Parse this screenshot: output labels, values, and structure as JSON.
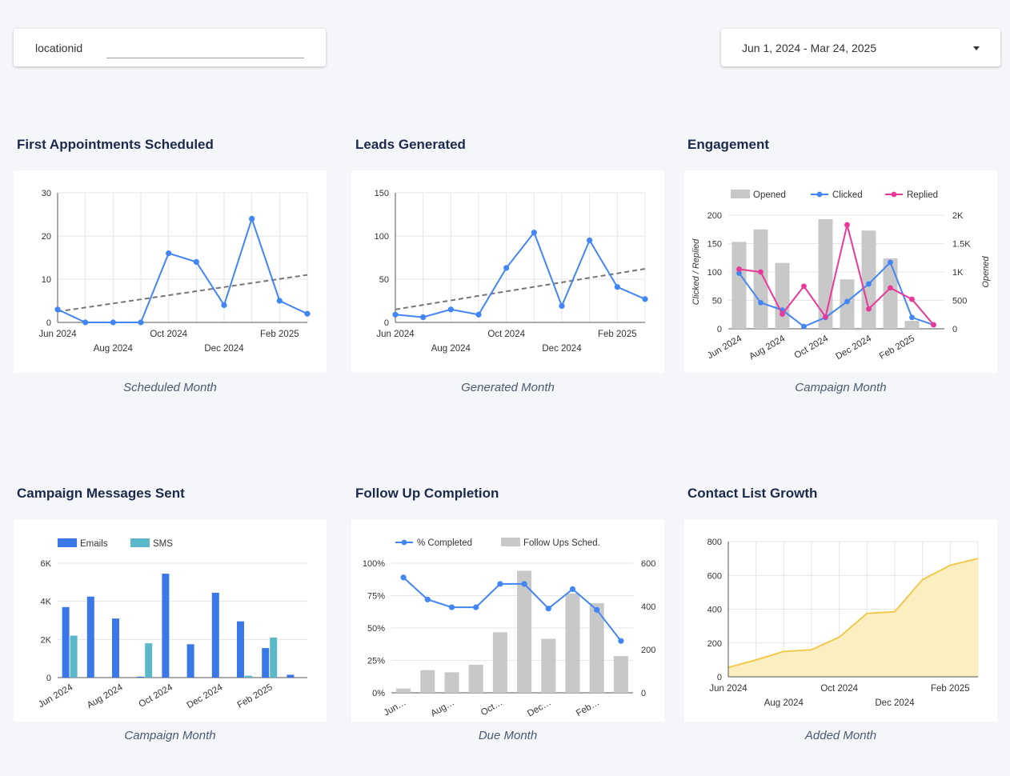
{
  "filters": {
    "location_label": "locationid",
    "date_range": "Jun 1, 2024 - Mar 24, 2025"
  },
  "chart_data": [
    {
      "id": "appointments",
      "type": "line",
      "title": "First Appointments Scheduled",
      "xlabel": "Scheduled Month",
      "ylabel": "",
      "ylim": [
        0,
        30
      ],
      "yticks": [
        "0",
        "10",
        "20",
        "30"
      ],
      "yticks_values": [
        0,
        10,
        20,
        30
      ],
      "x": [
        "Jun 2024",
        "Jul 2024",
        "Aug 2024",
        "Sep 2024",
        "Oct 2024",
        "Nov 2024",
        "Dec 2024",
        "Jan 2025",
        "Feb 2025",
        "Mar 2025"
      ],
      "xtick_labels": [
        {
          "label": "Jun 2024",
          "index": 0,
          "row": 0
        },
        {
          "label": "Aug 2024",
          "index": 2,
          "row": 1
        },
        {
          "label": "Oct 2024",
          "index": 4,
          "row": 0
        },
        {
          "label": "Dec 2024",
          "index": 6,
          "row": 1
        },
        {
          "label": "Feb 2025",
          "index": 8,
          "row": 0
        }
      ],
      "series": [
        {
          "name": "First Appointments",
          "values": [
            3,
            0,
            0,
            0,
            16,
            14,
            4,
            24,
            5,
            2
          ],
          "color": "#4285f4"
        }
      ],
      "trendline": {
        "start": 2.5,
        "end": 11,
        "color": "#757575"
      }
    },
    {
      "id": "leads",
      "type": "line",
      "title": "Leads Generated",
      "xlabel": "Generated Month",
      "ylabel": "",
      "ylim": [
        0,
        150
      ],
      "yticks": [
        "0",
        "50",
        "100",
        "150"
      ],
      "yticks_values": [
        0,
        50,
        100,
        150
      ],
      "x": [
        "Jun 2024",
        "Jul 2024",
        "Aug 2024",
        "Sep 2024",
        "Oct 2024",
        "Nov 2024",
        "Dec 2024",
        "Jan 2025",
        "Feb 2025",
        "Mar 2025"
      ],
      "xtick_labels": [
        {
          "label": "Jun 2024",
          "index": 0,
          "row": 0
        },
        {
          "label": "Aug 2024",
          "index": 2,
          "row": 1
        },
        {
          "label": "Oct 2024",
          "index": 4,
          "row": 0
        },
        {
          "label": "Dec 2024",
          "index": 6,
          "row": 1
        },
        {
          "label": "Feb 2025",
          "index": 8,
          "row": 0
        }
      ],
      "series": [
        {
          "name": "Leads",
          "values": [
            9,
            6,
            15,
            9,
            63,
            104,
            19,
            95,
            41,
            27
          ],
          "color": "#4285f4"
        }
      ],
      "trendline": {
        "start": 15,
        "end": 62,
        "color": "#757575"
      }
    },
    {
      "id": "engagement",
      "type": "combo",
      "title": "Engagement",
      "xlabel": "Campaign Month",
      "ylabel": "Clicked / Replied",
      "y2label": "Opened",
      "ylim": [
        0,
        200
      ],
      "yticks": [
        "0",
        "50",
        "100",
        "150",
        "200"
      ],
      "yticks_values": [
        0,
        50,
        100,
        150,
        200
      ],
      "y2lim": [
        0,
        2000
      ],
      "y2ticks": [
        "0",
        "500",
        "1K",
        "1.5K",
        "2K"
      ],
      "y2ticks_values": [
        0,
        500,
        1000,
        1500,
        2000
      ],
      "x": [
        "Jun 2024",
        "Jul 2024",
        "Aug 2024",
        "Sep 2024",
        "Oct 2024",
        "Nov 2024",
        "Dec 2024",
        "Jan 2025",
        "Feb 2025",
        "Mar 2025"
      ],
      "xtick_labels": [
        {
          "label": "Jun 2024",
          "index": 0
        },
        {
          "label": "Aug 2024",
          "index": 2
        },
        {
          "label": "Oct 2024",
          "index": 4
        },
        {
          "label": "Dec 2024",
          "index": 6
        },
        {
          "label": "Feb 2025",
          "index": 8
        }
      ],
      "bars": [
        {
          "name": "Opened",
          "values": [
            1530,
            1750,
            1160,
            0,
            1930,
            870,
            1730,
            1240,
            140,
            0
          ],
          "color": "#c8c8c8",
          "axis": "right"
        }
      ],
      "series": [
        {
          "name": "Clicked",
          "values": [
            98,
            46,
            33,
            4,
            20,
            48,
            79,
            117,
            20,
            7
          ],
          "color": "#4285f4"
        },
        {
          "name": "Replied",
          "values": [
            105,
            100,
            26,
            75,
            21,
            183,
            35,
            72,
            52,
            7
          ],
          "color": "#e8399a"
        }
      ],
      "legend": [
        "Opened",
        "Clicked",
        "Replied"
      ]
    },
    {
      "id": "messages",
      "type": "bar",
      "title": "Campaign Messages Sent",
      "xlabel": "Campaign Month",
      "ylabel": "",
      "ylim": [
        0,
        6000
      ],
      "yticks": [
        "0",
        "2K",
        "4K",
        "6K"
      ],
      "yticks_values": [
        0,
        2000,
        4000,
        6000
      ],
      "x": [
        "Jun 2024",
        "Jul 2024",
        "Aug 2024",
        "Sep 2024",
        "Oct 2024",
        "Nov 2024",
        "Dec 2024",
        "Jan 2025",
        "Feb 2025",
        "Mar 2025"
      ],
      "xtick_labels": [
        {
          "label": "Jun 2024",
          "index": 0
        },
        {
          "label": "Aug 2024",
          "index": 2
        },
        {
          "label": "Oct 2024",
          "index": 4
        },
        {
          "label": "Dec 2024",
          "index": 6
        },
        {
          "label": "Feb 2025",
          "index": 8
        }
      ],
      "series": [
        {
          "name": "Emails",
          "values": [
            3700,
            4250,
            3100,
            50,
            5450,
            1750,
            4450,
            2950,
            1550,
            150
          ],
          "color": "#3b78e7"
        },
        {
          "name": "SMS",
          "values": [
            2200,
            0,
            0,
            1800,
            0,
            0,
            0,
            100,
            2100,
            0
          ],
          "color": "#5bb8c9"
        }
      ],
      "legend": [
        "Emails",
        "SMS"
      ]
    },
    {
      "id": "followup",
      "type": "combo",
      "title": "Follow Up Completion",
      "xlabel": "Due Month",
      "ylabel": "",
      "y2label": "",
      "ylim": [
        0,
        100
      ],
      "yticks": [
        "0%",
        "25%",
        "50%",
        "75%",
        "100%"
      ],
      "yticks_values": [
        0,
        25,
        50,
        75,
        100
      ],
      "y2lim": [
        0,
        600
      ],
      "y2ticks": [
        "0",
        "200",
        "400",
        "600"
      ],
      "y2ticks_values": [
        0,
        200,
        400,
        600
      ],
      "x": [
        "Jun 2024",
        "Jul 2024",
        "Aug 2024",
        "Sep 2024",
        "Oct 2024",
        "Nov 2024",
        "Dec 2024",
        "Jan 2025",
        "Feb 2025",
        "Mar 2025"
      ],
      "xtick_labels": [
        {
          "label": "Jun…",
          "index": 0
        },
        {
          "label": "Aug…",
          "index": 2
        },
        {
          "label": "Oct…",
          "index": 4
        },
        {
          "label": "Dec…",
          "index": 6
        },
        {
          "label": "Feb…",
          "index": 8
        }
      ],
      "bars": [
        {
          "name": "Follow Ups Sched.",
          "values": [
            20,
            105,
            95,
            130,
            280,
            565,
            250,
            460,
            415,
            170
          ],
          "color": "#c8c8c8",
          "axis": "right"
        }
      ],
      "series": [
        {
          "name": "% Completed",
          "values": [
            89,
            72,
            66,
            66,
            84,
            84,
            65,
            80,
            64,
            40
          ],
          "color": "#4285f4"
        }
      ],
      "legend": [
        "% Completed",
        "Follow Ups Sched."
      ]
    },
    {
      "id": "contacts",
      "type": "area",
      "title": "Contact List Growth",
      "xlabel": "Added Month",
      "ylabel": "",
      "ylim": [
        0,
        800
      ],
      "yticks": [
        "0",
        "200",
        "400",
        "600",
        "800"
      ],
      "yticks_values": [
        0,
        200,
        400,
        600,
        800
      ],
      "x": [
        "Jun 2024",
        "Jul 2024",
        "Aug 2024",
        "Sep 2024",
        "Oct 2024",
        "Nov 2024",
        "Dec 2024",
        "Jan 2025",
        "Feb 2025",
        "Mar 2025"
      ],
      "xtick_labels": [
        {
          "label": "Jun 2024",
          "index": 0,
          "row": 0
        },
        {
          "label": "Aug 2024",
          "index": 2,
          "row": 1
        },
        {
          "label": "Oct 2024",
          "index": 4,
          "row": 0
        },
        {
          "label": "Dec 2024",
          "index": 6,
          "row": 1
        },
        {
          "label": "Feb 2025",
          "index": 8,
          "row": 0
        }
      ],
      "series": [
        {
          "name": "Contacts",
          "values": [
            55,
            100,
            150,
            160,
            235,
            375,
            385,
            575,
            660,
            700
          ],
          "color": "#f2c94c",
          "fill": "#fbefc2"
        }
      ]
    }
  ]
}
